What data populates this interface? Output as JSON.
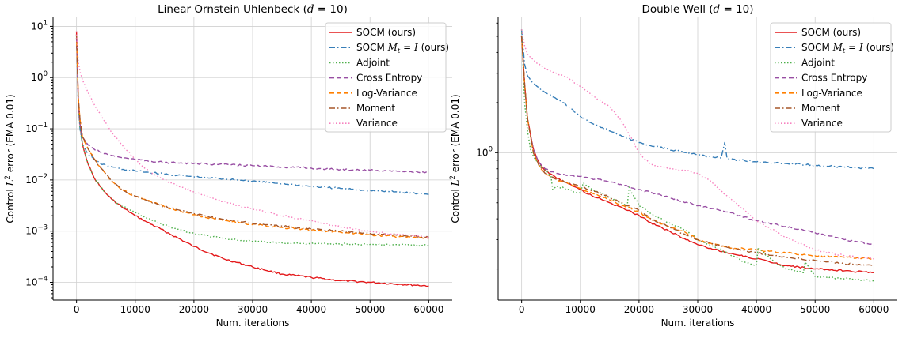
{
  "chart_data": [
    {
      "type": "line",
      "title": "Linear Ornstein Uhlenbeck (d = 10)",
      "title_main": "Linear Ornstein Uhlenbeck (",
      "title_var": "d",
      "title_rest": " = 10)",
      "xlabel": "Num. iterations",
      "ylabel": "Control L² error (EMA 0.01)",
      "ylabel_pre": "Control ",
      "ylabel_var": "L",
      "ylabel_sup": "2",
      "ylabel_post": " error (EMA 0.01)",
      "yscale": "log",
      "xlim": [
        -4000,
        64000
      ],
      "ylim": [
        4.5e-05,
        15
      ],
      "x_ticks": [
        0,
        10000,
        20000,
        30000,
        40000,
        50000,
        60000
      ],
      "x_tick_labels": [
        "0",
        "10000",
        "20000",
        "30000",
        "40000",
        "50000",
        "60000"
      ],
      "y_ticks": [
        0.0001,
        0.001,
        0.01,
        0.1,
        1,
        10
      ],
      "y_tick_labels": [
        {
          "base": "10",
          "exp": "−4"
        },
        {
          "base": "10",
          "exp": "−3"
        },
        {
          "base": "10",
          "exp": "−2"
        },
        {
          "base": "10",
          "exp": "−1"
        },
        {
          "base": "10",
          "exp": "0"
        },
        {
          "base": "10",
          "exp": "1"
        }
      ],
      "grid": true,
      "legend_position": "top-right",
      "series": [
        {
          "name": "SOCM (ours)",
          "color": "#e41a1c",
          "dash": "solid",
          "x": [
            0,
            300,
            600,
            1000,
            2000,
            3000,
            4000,
            5000,
            6000,
            8000,
            10000,
            12000,
            15000,
            20000,
            25000,
            30000,
            35000,
            40000,
            45000,
            50000,
            55000,
            60000
          ],
          "y": [
            8,
            0.4,
            0.12,
            0.05,
            0.02,
            0.011,
            0.0075,
            0.0055,
            0.0042,
            0.0028,
            0.002,
            0.0015,
            0.001,
            0.0005,
            0.00029,
            0.0002,
            0.000145,
            0.000125,
            0.000108,
            0.0001,
            9.2e-05,
            8.5e-05
          ]
        },
        {
          "name": "SOCM M_t = I (ours)",
          "name_pre": "SOCM ",
          "name_var": "M",
          "name_sub": "t",
          "name_post": " = ",
          "name_var2": "I",
          "name_end": " (ours)",
          "color": "#377eb8",
          "dash": "dashdot",
          "x": [
            0,
            300,
            600,
            1000,
            2000,
            3000,
            4000,
            6000,
            8000,
            10000,
            15000,
            20000,
            25000,
            30000,
            35000,
            40000,
            45000,
            50000,
            55000,
            60000
          ],
          "y": [
            7,
            0.3,
            0.1,
            0.05,
            0.032,
            0.025,
            0.021,
            0.018,
            0.016,
            0.015,
            0.013,
            0.0115,
            0.0105,
            0.0095,
            0.0085,
            0.0075,
            0.0068,
            0.0062,
            0.0058,
            0.0052
          ]
        },
        {
          "name": "Adjoint",
          "color": "#4daf4a",
          "dash": "dotted",
          "x": [
            0,
            300,
            600,
            1000,
            2000,
            3000,
            4000,
            5000,
            6000,
            8000,
            10000,
            12000,
            15000,
            20000,
            25000,
            30000,
            35000,
            40000,
            45000,
            50000,
            55000,
            60000
          ],
          "y": [
            6,
            0.3,
            0.1,
            0.05,
            0.02,
            0.011,
            0.0075,
            0.0055,
            0.0042,
            0.003,
            0.0023,
            0.0018,
            0.0013,
            0.0009,
            0.00072,
            0.00063,
            0.00059,
            0.00057,
            0.00056,
            0.00055,
            0.00054,
            0.00053
          ]
        },
        {
          "name": "Cross Entropy",
          "color": "#984ea3",
          "dash": "dashed",
          "x": [
            0,
            300,
            600,
            1000,
            2000,
            3000,
            4000,
            6000,
            8000,
            10000,
            15000,
            20000,
            25000,
            30000,
            35000,
            40000,
            45000,
            50000,
            55000,
            60000
          ],
          "y": [
            6,
            0.3,
            0.12,
            0.07,
            0.048,
            0.04,
            0.035,
            0.03,
            0.027,
            0.025,
            0.022,
            0.021,
            0.02,
            0.019,
            0.018,
            0.017,
            0.016,
            0.0155,
            0.0148,
            0.014
          ]
        },
        {
          "name": "Log-Variance",
          "color": "#ff7f00",
          "dash": "dashed",
          "x": [
            0,
            300,
            600,
            1000,
            2000,
            3000,
            4000,
            5000,
            6000,
            8000,
            10000,
            12000,
            15000,
            20000,
            25000,
            30000,
            35000,
            40000,
            45000,
            50000,
            55000,
            60000
          ],
          "y": [
            7,
            0.4,
            0.15,
            0.07,
            0.04,
            0.026,
            0.018,
            0.013,
            0.0095,
            0.0062,
            0.0048,
            0.004,
            0.003,
            0.0021,
            0.0016,
            0.00135,
            0.00118,
            0.00105,
            0.00095,
            0.00085,
            0.00078,
            0.00072
          ]
        },
        {
          "name": "Moment",
          "color": "#a65628",
          "dash": "dashdot",
          "x": [
            0,
            300,
            600,
            1000,
            2000,
            3000,
            4000,
            5000,
            6000,
            8000,
            10000,
            12000,
            15000,
            20000,
            25000,
            30000,
            35000,
            40000,
            45000,
            50000,
            55000,
            60000
          ],
          "y": [
            7,
            0.4,
            0.15,
            0.07,
            0.04,
            0.026,
            0.018,
            0.013,
            0.0095,
            0.0062,
            0.0048,
            0.004,
            0.003,
            0.0022,
            0.0017,
            0.00142,
            0.00125,
            0.0011,
            0.001,
            0.0009,
            0.00082,
            0.00076
          ]
        },
        {
          "name": "Variance",
          "color": "#f781bf",
          "dash": "dotted",
          "x": [
            0,
            300,
            600,
            1000,
            2000,
            3000,
            4000,
            5000,
            6000,
            8000,
            10000,
            12000,
            15000,
            20000,
            25000,
            30000,
            35000,
            40000,
            45000,
            50000,
            55000,
            60000
          ],
          "y": [
            8,
            2,
            1.3,
            0.9,
            0.5,
            0.3,
            0.2,
            0.13,
            0.085,
            0.045,
            0.025,
            0.016,
            0.01,
            0.0058,
            0.0038,
            0.0027,
            0.002,
            0.0016,
            0.0012,
            0.00098,
            0.00085,
            0.00078
          ]
        }
      ]
    },
    {
      "type": "line",
      "title": "Double Well (d = 10)",
      "title_main": "Double Well (",
      "title_var": "d",
      "title_rest": " = 10)",
      "xlabel": "Num. iterations",
      "ylabel": "Control L² error (EMA 0.01)",
      "ylabel_pre": "Control ",
      "ylabel_var": "L",
      "ylabel_sup": "2",
      "ylabel_post": " error (EMA 0.01)",
      "yscale": "log",
      "xlim": [
        -4000,
        64000
      ],
      "ylim": [
        0.13,
        6.5
      ],
      "x_ticks": [
        0,
        10000,
        20000,
        30000,
        40000,
        50000,
        60000
      ],
      "x_tick_labels": [
        "0",
        "10000",
        "20000",
        "30000",
        "40000",
        "50000",
        "60000"
      ],
      "y_ticks": [
        1
      ],
      "y_tick_labels": [
        {
          "base": "10",
          "exp": "0"
        }
      ],
      "grid": true,
      "legend_position": "top-right",
      "series": [
        {
          "name": "SOCM (ours)",
          "color": "#e41a1c",
          "dash": "solid",
          "x": [
            0,
            500,
            1000,
            2000,
            3000,
            4000,
            6000,
            8000,
            10000,
            12000,
            15000,
            18000,
            20000,
            22000,
            25000,
            28000,
            30000,
            35000,
            40000,
            45000,
            50000,
            55000,
            60000
          ],
          "y": [
            5.0,
            2.6,
            1.6,
            1.05,
            0.87,
            0.78,
            0.7,
            0.65,
            0.6,
            0.55,
            0.5,
            0.45,
            0.42,
            0.38,
            0.34,
            0.3,
            0.28,
            0.25,
            0.23,
            0.21,
            0.2,
            0.195,
            0.19
          ]
        },
        {
          "name": "SOCM M_t = I (ours)",
          "name_pre": "SOCM ",
          "name_var": "M",
          "name_sub": "t",
          "name_post": " = ",
          "name_var2": "I",
          "name_end": " (ours)",
          "color": "#377eb8",
          "dash": "dashdot",
          "x": [
            0,
            500,
            1000,
            2000,
            3000,
            4000,
            6000,
            8000,
            10000,
            12000,
            15000,
            18000,
            20000,
            22000,
            25000,
            28000,
            30000,
            34000,
            34600,
            35000,
            40000,
            45000,
            50000,
            55000,
            60000
          ],
          "y": [
            5.5,
            3.4,
            2.9,
            2.6,
            2.45,
            2.3,
            2.1,
            1.9,
            1.65,
            1.5,
            1.35,
            1.22,
            1.15,
            1.1,
            1.05,
            1.0,
            0.97,
            0.93,
            1.15,
            0.92,
            0.88,
            0.86,
            0.84,
            0.82,
            0.8
          ]
        },
        {
          "name": "Adjoint",
          "color": "#4daf4a",
          "dash": "dotted",
          "x": [
            0,
            500,
            1000,
            1500,
            2000,
            3000,
            4000,
            5000,
            5300,
            6000,
            8000,
            10000,
            10500,
            12000,
            15000,
            18000,
            18300,
            20000,
            22000,
            25000,
            28000,
            30000,
            33000,
            36000,
            38000,
            40000,
            40300,
            43000,
            45000,
            48000,
            48300,
            50000,
            55000,
            60000
          ],
          "y": [
            5.5,
            2.0,
            1.35,
            1.05,
            0.95,
            0.85,
            0.79,
            0.72,
            0.6,
            0.63,
            0.6,
            0.57,
            0.66,
            0.6,
            0.54,
            0.48,
            0.62,
            0.48,
            0.43,
            0.38,
            0.34,
            0.3,
            0.27,
            0.24,
            0.22,
            0.21,
            0.27,
            0.22,
            0.2,
            0.19,
            0.22,
            0.18,
            0.175,
            0.17
          ]
        },
        {
          "name": "Cross Entropy",
          "color": "#984ea3",
          "dash": "dashed",
          "x": [
            0,
            500,
            1000,
            2000,
            3000,
            4000,
            6000,
            8000,
            10000,
            15000,
            20000,
            25000,
            30000,
            35000,
            40000,
            45000,
            50000,
            55000,
            60000
          ],
          "y": [
            5.0,
            2.6,
            1.6,
            1.05,
            0.87,
            0.8,
            0.75,
            0.73,
            0.72,
            0.67,
            0.6,
            0.54,
            0.48,
            0.44,
            0.39,
            0.36,
            0.33,
            0.3,
            0.28
          ]
        },
        {
          "name": "Log-Variance",
          "color": "#ff7f00",
          "dash": "dashed",
          "x": [
            0,
            500,
            1000,
            2000,
            3000,
            4000,
            6000,
            8000,
            10000,
            12000,
            15000,
            18000,
            20000,
            22000,
            25000,
            28000,
            30000,
            35000,
            40000,
            45000,
            50000,
            55000,
            60000
          ],
          "y": [
            5.0,
            2.6,
            1.6,
            1.0,
            0.83,
            0.75,
            0.69,
            0.65,
            0.61,
            0.57,
            0.52,
            0.47,
            0.44,
            0.4,
            0.36,
            0.33,
            0.3,
            0.27,
            0.26,
            0.25,
            0.24,
            0.235,
            0.23
          ]
        },
        {
          "name": "Moment",
          "color": "#a65628",
          "dash": "dashdot",
          "x": [
            0,
            500,
            1000,
            2000,
            3000,
            4000,
            6000,
            8000,
            10000,
            12000,
            15000,
            18000,
            20000,
            22000,
            25000,
            28000,
            30000,
            35000,
            40000,
            45000,
            50000,
            55000,
            60000
          ],
          "y": [
            5.0,
            2.6,
            1.6,
            1.0,
            0.83,
            0.75,
            0.69,
            0.66,
            0.63,
            0.59,
            0.54,
            0.48,
            0.45,
            0.4,
            0.36,
            0.32,
            0.3,
            0.27,
            0.25,
            0.235,
            0.225,
            0.215,
            0.21
          ]
        },
        {
          "name": "Variance",
          "color": "#f781bf",
          "dash": "dotted",
          "x": [
            0,
            500,
            1000,
            2000,
            3000,
            4000,
            6000,
            8000,
            10000,
            12000,
            15000,
            17000,
            18000,
            20000,
            22000,
            25000,
            28000,
            30000,
            32000,
            35000,
            38000,
            40000,
            45000,
            50000,
            55000,
            60000
          ],
          "y": [
            5.5,
            4.4,
            3.9,
            3.6,
            3.4,
            3.2,
            3.0,
            2.8,
            2.5,
            2.2,
            1.9,
            1.55,
            1.35,
            1.0,
            0.85,
            0.8,
            0.78,
            0.75,
            0.68,
            0.55,
            0.45,
            0.39,
            0.31,
            0.26,
            0.24,
            0.23
          ]
        }
      ]
    }
  ]
}
